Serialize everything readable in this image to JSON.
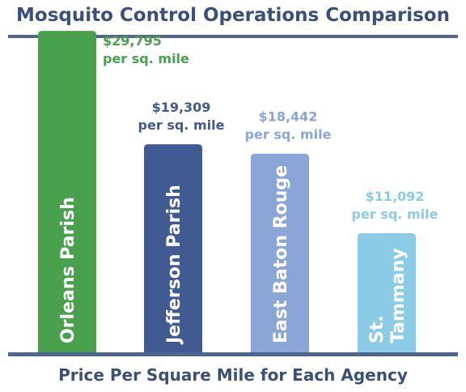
{
  "chart_data": {
    "type": "bar",
    "title": "Mosquito Control Operations Comparison",
    "xlabel": "Price Per Square Mile for Each Agency",
    "ylabel": "",
    "ylim": [
      0,
      31000
    ],
    "grid": false,
    "legend": "none",
    "categories": [
      {
        "name": "Orleans Parish",
        "lines": [
          "Orleans Parish"
        ]
      },
      {
        "name": "Jefferson Parish",
        "lines": [
          "Jefferson Parish"
        ]
      },
      {
        "name": "East Baton Rouge",
        "lines": [
          "East Baton Rouge"
        ]
      },
      {
        "name": "St. Tammany",
        "lines": [
          "St.",
          "Tammany"
        ]
      }
    ],
    "values": [
      29795,
      19309,
      18442,
      11092
    ],
    "data_labels": [
      {
        "value": "$29,795",
        "unit": "per sq. mile"
      },
      {
        "value": "$19,309",
        "unit": "per sq. mile"
      },
      {
        "value": "$18,442",
        "unit": "per sq. mile"
      },
      {
        "value": "$11,092",
        "unit": "per sq. mile"
      }
    ],
    "colors": [
      "#4aa14d",
      "#425a92",
      "#8aa6d6",
      "#8ccbe6"
    ]
  }
}
